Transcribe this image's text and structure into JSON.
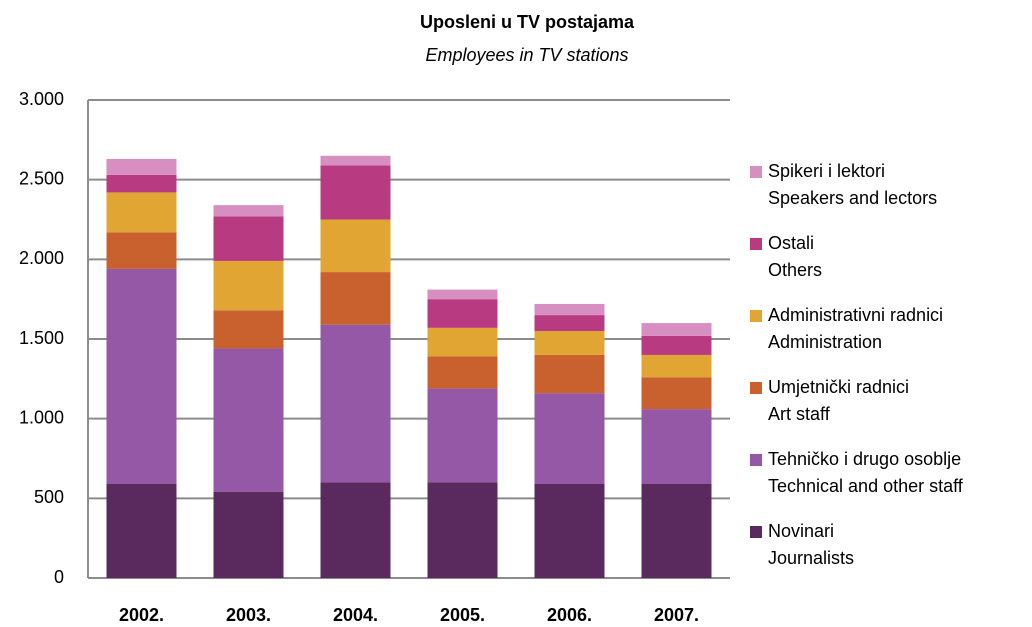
{
  "chart_data": {
    "type": "bar",
    "stacked": true,
    "title": "Uposleni u TV postajama",
    "subtitle": "Employees in TV stations",
    "categories": [
      "2002.",
      "2003.",
      "2004.",
      "2005.",
      "2006.",
      "2007."
    ],
    "series": [
      {
        "name": "Novinari",
        "name_en": "Journalists",
        "color": "#5a2a5f",
        "values": [
          590,
          540,
          600,
          600,
          590,
          590
        ]
      },
      {
        "name": "Tehničko i drugo osoblje",
        "name_en": "Technical and other staff",
        "color": "#9558a6",
        "values": [
          1350,
          900,
          990,
          590,
          570,
          470
        ]
      },
      {
        "name": "Umjetnički radnici",
        "name_en": "Art staff",
        "color": "#c8612e",
        "values": [
          230,
          240,
          330,
          200,
          240,
          200
        ]
      },
      {
        "name": "Administrativni radnici",
        "name_en": "Administration",
        "color": "#e0a532",
        "values": [
          250,
          310,
          330,
          180,
          150,
          140
        ]
      },
      {
        "name": "Ostali",
        "name_en": "Others",
        "color": "#b83a80",
        "values": [
          110,
          280,
          340,
          180,
          100,
          120
        ]
      },
      {
        "name": "Spikeri i lektori",
        "name_en": "Speakers and lectors",
        "color": "#d78ec0",
        "values": [
          100,
          70,
          60,
          60,
          70,
          80
        ]
      }
    ],
    "ylim": [
      0,
      3000
    ],
    "yticks": [
      0,
      500,
      {
        "value": 1000,
        "label": "1.000"
      },
      {
        "value": 1500,
        "label": "1.500"
      },
      {
        "value": 2000,
        "label": "2.000"
      },
      {
        "value": 2500,
        "label": "2.500"
      },
      {
        "value": 3000,
        "label": "3.000"
      }
    ],
    "grid": true,
    "legend": "right"
  }
}
